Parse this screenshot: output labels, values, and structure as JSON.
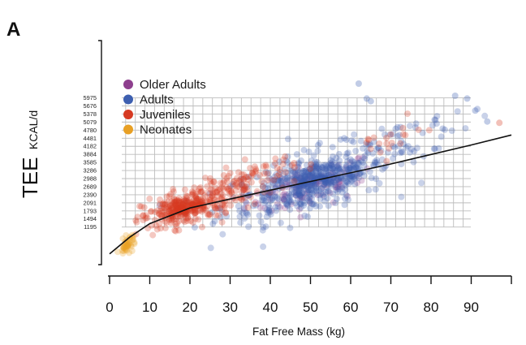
{
  "panel_label": "A",
  "chart_data": {
    "type": "scatter",
    "title": "",
    "xlabel": "Fat Free Mass (kg)",
    "ylabel": "TEE",
    "ylabel_unit": "KCAL/d",
    "xlim": [
      0,
      100
    ],
    "ylim": [
      0,
      7000
    ],
    "x_ticks": [
      0,
      10,
      20,
      30,
      40,
      50,
      60,
      70,
      80,
      90
    ],
    "y_ticks": [
      1195,
      1494,
      1793,
      2091,
      2390,
      2689,
      2988,
      3286,
      3585,
      3884,
      4182,
      4481,
      4780,
      5079,
      5378,
      5676,
      5975
    ],
    "grid": true,
    "legend_position": "top-left",
    "series": [
      {
        "name": "Older Adults",
        "color": "#8e3f8e",
        "clusters": [
          {
            "x": [
              34,
              66
            ],
            "y": [
              1700,
              3700
            ],
            "count": 70
          },
          {
            "x": [
              38,
              62
            ],
            "y": [
              2000,
              3300
            ],
            "count": 40
          }
        ]
      },
      {
        "name": "Adults",
        "color": "#3d5fb0",
        "clusters": [
          {
            "x": [
              28,
              70
            ],
            "y": [
              1400,
              4200
            ],
            "count": 380
          },
          {
            "x": [
              40,
              64
            ],
            "y": [
              2200,
              3700
            ],
            "count": 200
          },
          {
            "x": [
              55,
              90
            ],
            "y": [
              3200,
              5600
            ],
            "count": 60
          }
        ]
      },
      {
        "name": "Juveniles",
        "color": "#d63a22",
        "clusters": [
          {
            "x": [
              8,
              32
            ],
            "y": [
              1100,
              2900
            ],
            "count": 230
          },
          {
            "x": [
              12,
              24
            ],
            "y": [
              1400,
              2300
            ],
            "count": 140
          },
          {
            "x": [
              24,
              46
            ],
            "y": [
              1900,
              3800
            ],
            "count": 90
          },
          {
            "x": [
              60,
              78
            ],
            "y": [
              3600,
              5100
            ],
            "count": 20
          }
        ]
      },
      {
        "name": "Neonates",
        "color": "#e8a025",
        "clusters": [
          {
            "x": [
              2.5,
              6.5
            ],
            "y": [
              200,
              900
            ],
            "count": 45
          }
        ]
      }
    ],
    "outliers": [
      {
        "x": 62,
        "y": 6500,
        "series": "Adults"
      },
      {
        "x": 64,
        "y": 5950,
        "series": "Adults"
      },
      {
        "x": 65,
        "y": 5850,
        "series": "Adults"
      },
      {
        "x": 86,
        "y": 6050,
        "series": "Adults"
      },
      {
        "x": 89,
        "y": 5950,
        "series": "Adults"
      },
      {
        "x": 91,
        "y": 5500,
        "series": "Adults"
      },
      {
        "x": 94,
        "y": 5100,
        "series": "Adults"
      },
      {
        "x": 97,
        "y": 5050,
        "series": "Juveniles"
      }
    ],
    "fit_curve": {
      "color": "#111111",
      "points": [
        {
          "x": 0,
          "y": 200
        },
        {
          "x": 5,
          "y": 820
        },
        {
          "x": 10,
          "y": 1320
        },
        {
          "x": 20,
          "y": 1900
        },
        {
          "x": 30,
          "y": 2230
        },
        {
          "x": 40,
          "y": 2560
        },
        {
          "x": 50,
          "y": 2880
        },
        {
          "x": 60,
          "y": 3200
        },
        {
          "x": 70,
          "y": 3530
        },
        {
          "x": 80,
          "y": 3880
        },
        {
          "x": 90,
          "y": 4230
        },
        {
          "x": 100,
          "y": 4600
        }
      ]
    }
  }
}
